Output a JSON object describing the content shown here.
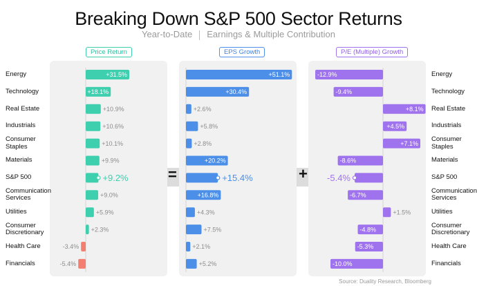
{
  "title": "Breaking Down S&P 500 Sector Returns",
  "subtitle_left": "Year-to-Date",
  "subtitle_right": "Earnings & Multiple Contribution",
  "operators": {
    "equals": "=",
    "plus": "+"
  },
  "source": "Source: Duality Research, Bloomberg",
  "colors": {
    "price": "#3dcfae",
    "eps": "#4b8fe8",
    "pe": "#a073ee",
    "negative_price": "#f37f73",
    "panel": "#f1f1f1",
    "band": "#dcdcdc"
  },
  "chart_data": {
    "type": "bar",
    "orientation": "horizontal",
    "categories": [
      "Energy",
      "Technology",
      "Real Estate",
      "Industrials",
      "Consumer Staples",
      "Materials",
      "S&P 500",
      "Communication Services",
      "Utilities",
      "Consumer Discretionary",
      "Health Care",
      "Financials"
    ],
    "highlight_category": "S&P 500",
    "series": [
      {
        "name": "Price Return",
        "values": [
          31.5,
          18.1,
          10.9,
          10.6,
          10.1,
          9.9,
          9.2,
          9.0,
          5.9,
          2.3,
          -3.4,
          -5.4
        ],
        "labels": [
          "+31.5%",
          "+18.1%",
          "+10.9%",
          "+10.6%",
          "+10.1%",
          "+9.9%",
          "+9.2%",
          "+9.0%",
          "+5.9%",
          "+2.3%",
          "-3.4%",
          "-5.4%"
        ]
      },
      {
        "name": "EPS Growth",
        "values": [
          51.1,
          30.4,
          2.6,
          5.8,
          2.8,
          20.2,
          15.4,
          16.8,
          4.3,
          7.5,
          2.1,
          5.2
        ],
        "labels": [
          "+51.1%",
          "+30.4%",
          "+2.6%",
          "+5.8%",
          "+2.8%",
          "+20.2%",
          "+15.4%",
          "+16.8%",
          "+4.3%",
          "+7.5%",
          "+2.1%",
          "+5.2%"
        ]
      },
      {
        "name": "P/E (Multiple) Growth",
        "values": [
          -12.9,
          -9.4,
          8.1,
          4.5,
          7.1,
          -8.6,
          -5.4,
          -6.7,
          1.5,
          -4.8,
          -5.3,
          -10.0
        ],
        "labels": [
          "-12.9%",
          "-9.4%",
          "+8.1%",
          "+4.5%",
          "+7.1%",
          "-8.6%",
          "-5.4%",
          "-6.7%",
          "+1.5%",
          "-4.8%",
          "-5.3%",
          "-10.0%"
        ]
      }
    ],
    "left_labels": [
      "Energy",
      "Technology",
      "Real Estate",
      "Industrials",
      "Consumer\nStaples",
      "Materials",
      "S&P 500",
      "Communication\nServices",
      "Utilities",
      "Consumer\nDiscretionary",
      "Health Care",
      "Financials"
    ],
    "right_labels": [
      "Energy",
      "Technology",
      "Real Estate",
      "Industrials",
      "Consumer\nStaples",
      "Materials",
      "S&P 500",
      "Communication\nServices",
      "Utilities",
      "Consumer\nDiscretionary",
      "Health Care",
      "Financials"
    ]
  }
}
